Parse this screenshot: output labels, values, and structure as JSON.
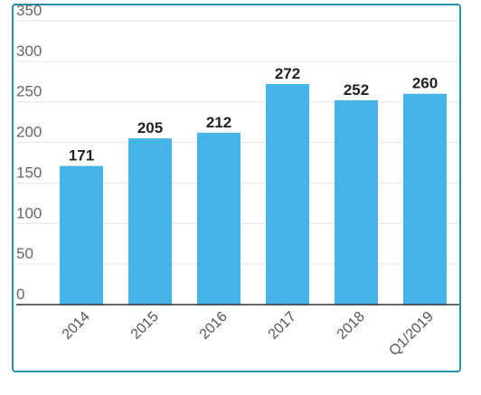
{
  "chart_data": {
    "type": "bar",
    "categories": [
      "2014",
      "2015",
      "2016",
      "2017",
      "2018",
      "Q1/2019"
    ],
    "values": [
      171,
      205,
      212,
      272,
      252,
      260
    ],
    "data_labels": [
      "171",
      "205",
      "212",
      "272",
      "252",
      "260"
    ],
    "y_ticks": [
      0,
      50,
      100,
      150,
      200,
      250,
      300,
      350
    ],
    "ylim": [
      0,
      350
    ],
    "grid": true,
    "bar_color": "#45b5e8",
    "border_color": "#2a8fa8",
    "title": "",
    "xlabel": "",
    "ylabel": ""
  }
}
